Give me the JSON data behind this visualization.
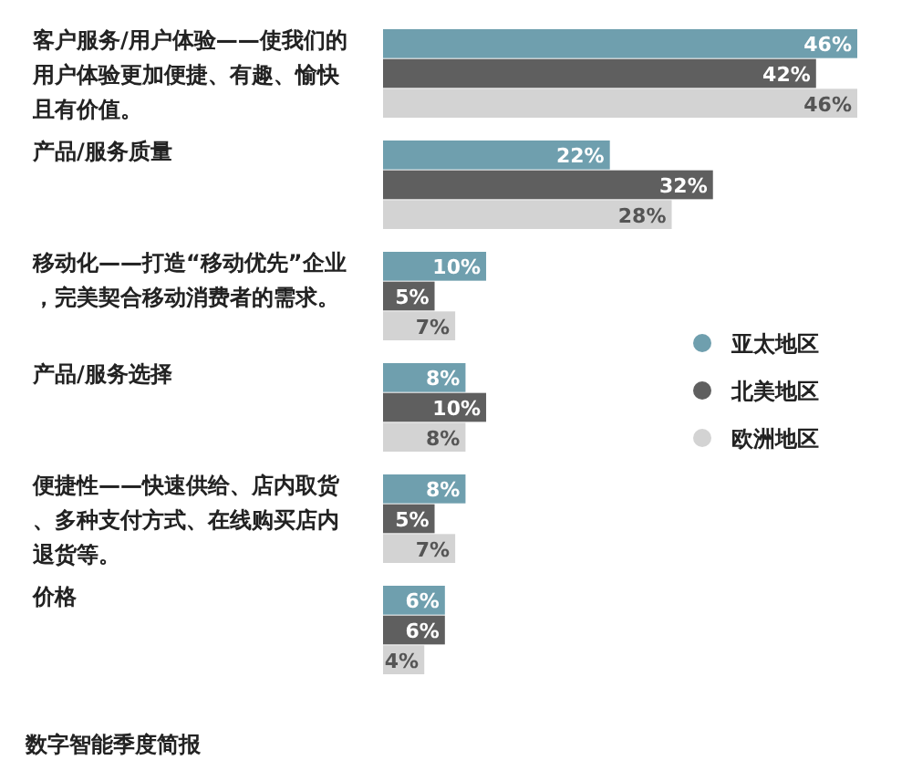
{
  "chart_data": {
    "type": "bar",
    "orientation": "horizontal",
    "categories": [
      "客户服务/用户体验——使我们的用户体验更加便捷、有趣、愉快且有价值。",
      "产品/服务质量",
      "移动化——打造“移动优先”企业，完美契合移动消费者的需求。",
      "产品/服务选择",
      "便捷性——快速供给、店内取货、多种支付方式、在线购买店内退货等。",
      "价格"
    ],
    "series": [
      {
        "name": "亚太地区",
        "color": "#6f9fae",
        "values": [
          46,
          22,
          10,
          8,
          8,
          6
        ],
        "value_labels": [
          "46%",
          "22%",
          "10%",
          "8%",
          "8%",
          "6%"
        ]
      },
      {
        "name": "北美地区",
        "color": "#5f5f5f",
        "values": [
          42,
          32,
          5,
          10,
          5,
          6
        ],
        "value_labels": [
          "42%",
          "32%",
          "5%",
          "10%",
          "5%",
          "6%"
        ]
      },
      {
        "name": "欧洲地区",
        "color": "#d3d3d3",
        "values": [
          46,
          28,
          7,
          8,
          7,
          4
        ],
        "value_labels": [
          "46%",
          "28%",
          "7%",
          "8%",
          "7%",
          "4%"
        ]
      }
    ],
    "xlim": [
      0,
      46
    ],
    "legend": "right",
    "annotations": [
      "数字智能季度简报"
    ]
  }
}
